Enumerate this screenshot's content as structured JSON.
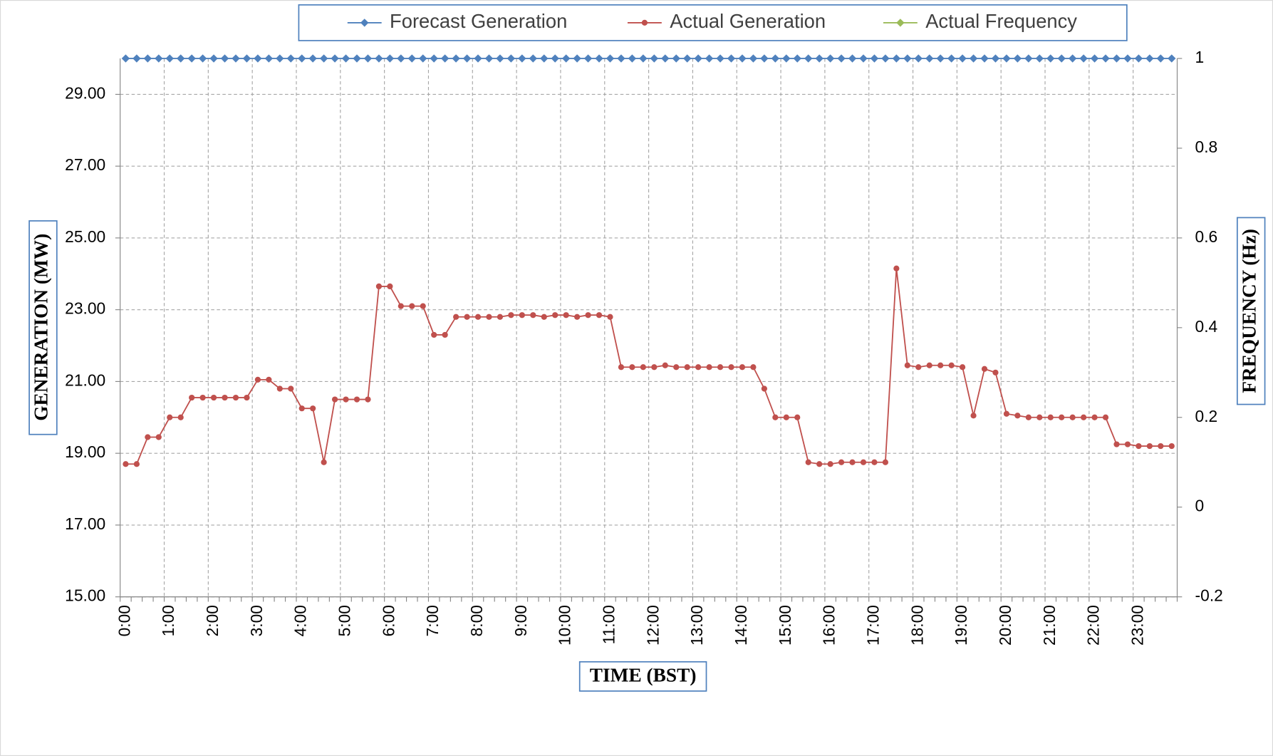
{
  "chart_data": {
    "type": "line",
    "xlabel": "TIME (BST)",
    "ylabel": "GENERATION (MW)",
    "y2label": "FREQUENCY (Hz)",
    "categories": [
      "0:00",
      null,
      null,
      null,
      "1:00",
      null,
      null,
      null,
      "2:00",
      null,
      null,
      null,
      "3:00",
      null,
      null,
      null,
      "4:00",
      null,
      null,
      null,
      "5:00",
      null,
      null,
      null,
      "6:00",
      null,
      null,
      null,
      "7:00",
      null,
      null,
      null,
      "8:00",
      null,
      null,
      null,
      "9:00",
      null,
      null,
      null,
      "10:00",
      null,
      null,
      null,
      "11:00",
      null,
      null,
      null,
      "12:00",
      null,
      null,
      null,
      "13:00",
      null,
      null,
      null,
      "14:00",
      null,
      null,
      null,
      "15:00",
      null,
      null,
      null,
      "16:00",
      null,
      null,
      null,
      "17:00",
      null,
      null,
      null,
      "18:00",
      null,
      null,
      null,
      "19:00",
      null,
      null,
      null,
      "20:00",
      null,
      null,
      null,
      "21:00",
      null,
      null,
      null,
      "22:00",
      null,
      null,
      null,
      "23:00",
      null,
      null,
      null
    ],
    "series": [
      {
        "name": "Forecast Generation",
        "color": "#4f81bd",
        "marker": "diamond",
        "values": [
          30,
          30,
          30,
          30,
          30,
          30,
          30,
          30,
          30,
          30,
          30,
          30,
          30,
          30,
          30,
          30,
          30,
          30,
          30,
          30,
          30,
          30,
          30,
          30,
          30,
          30,
          30,
          30,
          30,
          30,
          30,
          30,
          30,
          30,
          30,
          30,
          30,
          30,
          30,
          30,
          30,
          30,
          30,
          30,
          30,
          30,
          30,
          30,
          30,
          30,
          30,
          30,
          30,
          30,
          30,
          30,
          30,
          30,
          30,
          30,
          30,
          30,
          30,
          30,
          30,
          30,
          30,
          30,
          30,
          30,
          30,
          30,
          30,
          30,
          30,
          30,
          30,
          30,
          30,
          30,
          30,
          30,
          30,
          30,
          30,
          30,
          30,
          30,
          30,
          30,
          30,
          30,
          30,
          30,
          30,
          30
        ]
      },
      {
        "name": "Actual Generation",
        "color": "#c0504d",
        "marker": "circle",
        "values": [
          18.7,
          18.7,
          19.45,
          19.45,
          20,
          20,
          20.55,
          20.55,
          20.55,
          20.55,
          20.55,
          20.55,
          21.05,
          21.05,
          20.8,
          20.8,
          20.25,
          20.25,
          18.75,
          20.5,
          20.5,
          20.5,
          20.5,
          23.65,
          23.65,
          23.1,
          23.1,
          23.1,
          22.3,
          22.3,
          22.8,
          22.8,
          22.8,
          22.8,
          22.8,
          22.85,
          22.85,
          22.85,
          22.8,
          22.85,
          22.85,
          22.8,
          22.85,
          22.85,
          22.8,
          21.4,
          21.4,
          21.4,
          21.4,
          21.45,
          21.4,
          21.4,
          21.4,
          21.4,
          21.4,
          21.4,
          21.4,
          21.4,
          20.8,
          20,
          20,
          20,
          18.75,
          18.7,
          18.7,
          18.75,
          18.75,
          18.75,
          18.75,
          18.75,
          24.15,
          21.45,
          21.4,
          21.45,
          21.45,
          21.45,
          21.4,
          20.05,
          21.35,
          21.25,
          20.1,
          20.05,
          20,
          20,
          20,
          20,
          20,
          20,
          20,
          20,
          19.25,
          19.25,
          19.2,
          19.2,
          19.2,
          19.2
        ]
      },
      {
        "name": "Actual Frequency",
        "color": "#9bbb59",
        "marker": "diamond",
        "axis": "y2",
        "values": [
          null,
          null,
          null,
          null,
          null,
          null,
          null,
          null,
          null,
          null,
          null,
          null,
          null,
          null,
          null,
          null,
          null,
          null,
          null,
          null,
          null,
          null,
          null,
          null,
          null,
          null,
          null,
          null,
          null,
          null,
          null,
          null,
          null,
          null,
          null,
          null,
          null,
          null,
          null,
          null,
          null,
          null,
          null,
          null,
          null,
          null,
          null,
          null,
          null,
          null,
          null,
          null,
          null,
          null,
          null,
          null,
          null,
          null,
          null,
          null,
          null,
          null,
          null,
          null,
          null,
          null,
          null,
          null,
          null,
          null,
          null,
          null,
          null,
          null,
          null,
          null,
          null,
          null,
          null,
          null,
          null,
          null,
          null,
          null,
          null,
          null,
          null,
          null,
          null,
          null,
          null,
          null,
          null,
          null,
          null,
          null
        ]
      }
    ],
    "ylim": [
      15,
      30
    ],
    "yticks": [
      {
        "value": 15,
        "label": "15.00"
      },
      {
        "value": 17,
        "label": "17.00"
      },
      {
        "value": 19,
        "label": "19.00"
      },
      {
        "value": 21,
        "label": "21.00"
      },
      {
        "value": 23,
        "label": "23.00"
      },
      {
        "value": 25,
        "label": "25.00"
      },
      {
        "value": 27,
        "label": "27.00"
      },
      {
        "value": 29,
        "label": "29.00"
      }
    ],
    "y2lim": [
      -0.2,
      1
    ],
    "y2ticks": [
      -0.2,
      0,
      0.2,
      0.4,
      0.6,
      0.8,
      1
    ],
    "grid": true,
    "legend": "top"
  }
}
